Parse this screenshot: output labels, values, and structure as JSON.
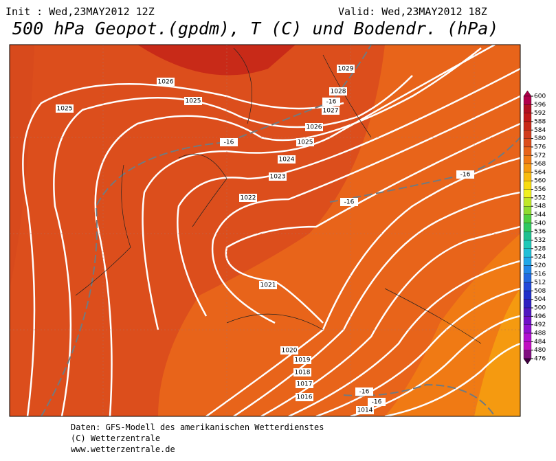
{
  "header": {
    "init": "Init : Wed,23MAY2012 12Z",
    "valid": "Valid: Wed,23MAY2012 18Z",
    "title": "500 hPa Geopot.(gpdm), T (C) und Bodendr. (hPa)"
  },
  "isobar_labels": [
    "1029",
    "1028",
    "1027",
    "1026",
    "1025",
    "1025",
    "1026",
    "1025",
    "1024",
    "1023",
    "1022",
    "1021",
    "1020",
    "1019",
    "1018",
    "1017",
    "1016",
    "1014"
  ],
  "temperature_labels": [
    "-16",
    "-16",
    "-16",
    "-16",
    "-16",
    "-16"
  ],
  "colorbar": {
    "ticks": [
      600,
      596,
      592,
      588,
      584,
      580,
      576,
      572,
      568,
      564,
      560,
      556,
      552,
      548,
      544,
      540,
      536,
      532,
      528,
      524,
      520,
      516,
      512,
      508,
      504,
      500,
      496,
      492,
      488,
      484,
      480,
      476
    ],
    "colors": [
      "#b0004a",
      "#b01020",
      "#c01818",
      "#c82a18",
      "#d03c1c",
      "#dc4e1c",
      "#e8641a",
      "#f07a14",
      "#f59a10",
      "#f8bc10",
      "#f8dc10",
      "#f0f020",
      "#c0e828",
      "#90dc30",
      "#50d040",
      "#30c860",
      "#20c090",
      "#20c8b8",
      "#20c0d8",
      "#20a8e8",
      "#2088e8",
      "#2068e0",
      "#2048d8",
      "#2030c8",
      "#3020c0",
      "#5018c0",
      "#7010c8",
      "#9010d0",
      "#b010d0",
      "#c010c0",
      "#801080",
      "#400040"
    ]
  },
  "footer": [
    "Daten: GFS-Modell des amerikanischen Wetterdienstes",
    "(C) Wetterzentrale",
    "www.wetterzentrale.de"
  ]
}
